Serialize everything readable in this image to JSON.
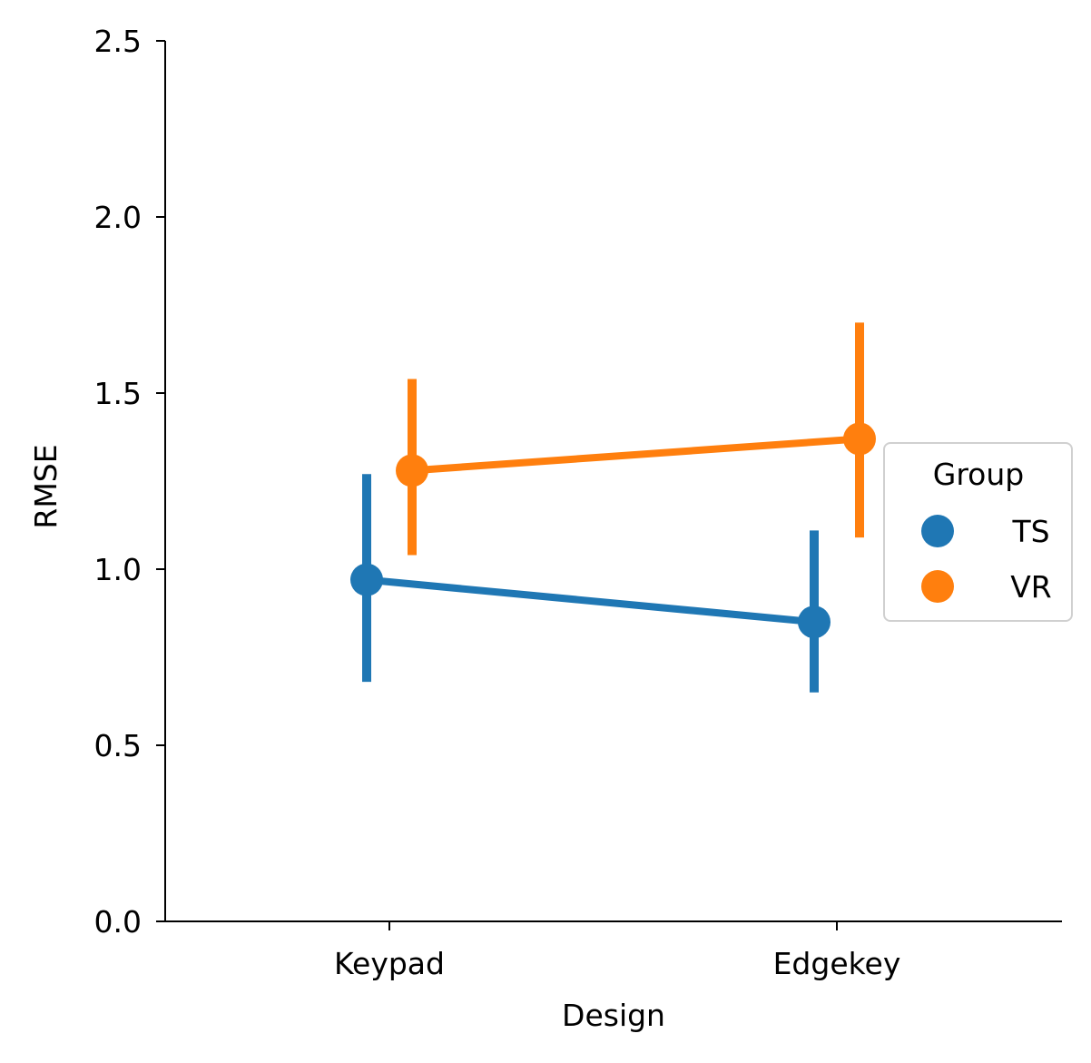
{
  "chart_data": {
    "type": "line",
    "xlabel": "Design",
    "ylabel": "RMSE",
    "categories": [
      "Keypad",
      "Edgekey"
    ],
    "ylim": [
      0.0,
      2.5
    ],
    "yticks": [
      "0.0",
      "0.5",
      "1.0",
      "1.5",
      "2.0",
      "2.5"
    ],
    "grid": false,
    "legend": {
      "title": "Group",
      "placement": "center-right"
    },
    "series": [
      {
        "name": "TS",
        "color": "#1f77b4",
        "values": [
          0.97,
          0.85
        ],
        "ci_low": [
          0.68,
          0.65
        ],
        "ci_high": [
          1.27,
          1.11
        ]
      },
      {
        "name": "VR",
        "color": "#ff7f0e",
        "values": [
          1.28,
          1.37
        ],
        "ci_low": [
          1.04,
          1.09
        ],
        "ci_high": [
          1.54,
          1.7
        ]
      }
    ]
  }
}
